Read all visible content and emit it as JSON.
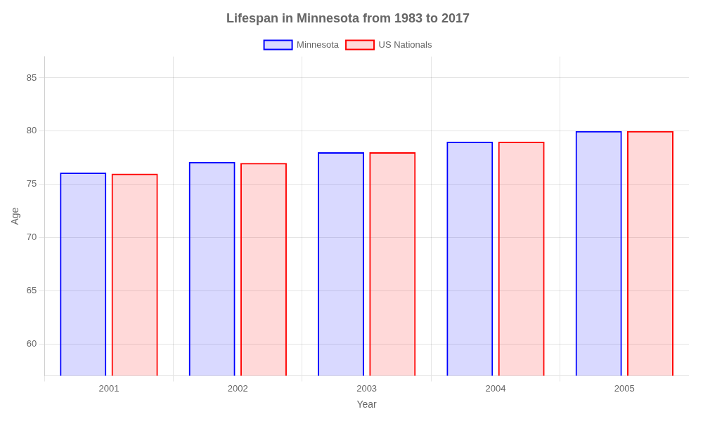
{
  "chart_data": {
    "type": "bar",
    "title": "Lifespan in Minnesota from 1983 to 2017",
    "x_label": "Year",
    "y_label": "Age",
    "categories": [
      "2001",
      "2002",
      "2003",
      "2004",
      "2005"
    ],
    "series": [
      {
        "name": "Minnesota",
        "color": "#0000ff",
        "values": [
          76.1,
          77.1,
          78.0,
          79.0,
          80.0
        ]
      },
      {
        "name": "US Nationals",
        "color": "#ff0000",
        "values": [
          76.0,
          77.0,
          78.0,
          79.0,
          80.0
        ]
      }
    ],
    "ylim": [
      57,
      87
    ],
    "yticks": [
      60,
      65,
      70,
      75,
      80,
      85
    ],
    "grid": true,
    "legend": "top"
  }
}
